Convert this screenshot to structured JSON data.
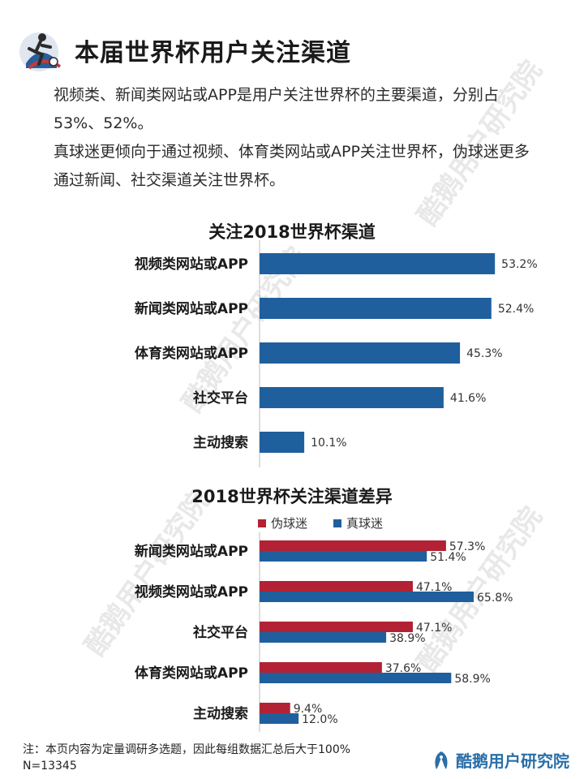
{
  "header": {
    "title": "本届世界杯用户关注渠道"
  },
  "intro": {
    "p1": "视频类、新闻类网站或APP是用户关注世界杯的主要渠道，分别占53%、52%。",
    "p2": "真球迷更倾向于通过视频、体育类网站或APP关注世界杯，伪球迷更多通过新闻、社交渠道关注世界杯。"
  },
  "watermark": {
    "text": "酷鹅用户研究院"
  },
  "colors": {
    "blue": "#1f5f9e",
    "red": "#b22234"
  },
  "chart_data": [
    {
      "type": "bar",
      "orientation": "horizontal",
      "title": "关注2018世界杯渠道",
      "categories": [
        "视频类网站或APP",
        "新闻类网站或APP",
        "体育类网站或APP",
        "社交平台",
        "主动搜索"
      ],
      "values": [
        53.2,
        52.4,
        45.3,
        41.6,
        10.1
      ],
      "value_labels": [
        "53.2%",
        "52.4%",
        "45.3%",
        "41.6%",
        "10.1%"
      ],
      "xlim": [
        0,
        55
      ],
      "grid": false
    },
    {
      "type": "bar",
      "orientation": "horizontal",
      "title": "2018世界杯关注渠道差异",
      "categories": [
        "新闻类网站或APP",
        "视频类网站或APP",
        "社交平台",
        "体育类网站或APP",
        "主动搜索"
      ],
      "series": [
        {
          "name": "伪球迷",
          "values": [
            57.3,
            47.1,
            47.1,
            37.6,
            9.4
          ],
          "labels": [
            "57.3%",
            "47.1%",
            "47.1%",
            "37.6%",
            "9.4%"
          ]
        },
        {
          "name": "真球迷",
          "values": [
            51.4,
            65.8,
            38.9,
            58.9,
            12.0
          ],
          "labels": [
            "51.4%",
            "65.8%",
            "38.9%",
            "58.9%",
            "12.0%"
          ]
        }
      ],
      "legend_position": "top",
      "xlim": [
        0,
        65.8
      ],
      "grid": false
    }
  ],
  "footer": {
    "note": "注：本页内容为定量调研多选题，因此每组数据汇总后大于100%",
    "sample": "N=13345",
    "brand": "酷鹅用户研究院"
  }
}
